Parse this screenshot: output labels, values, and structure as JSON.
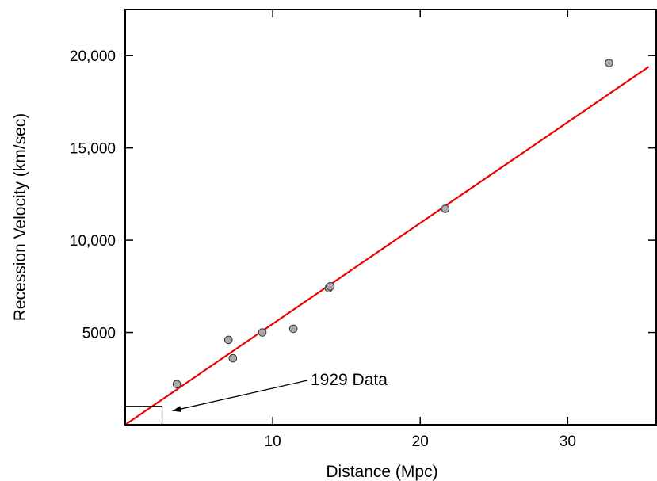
{
  "chart_data": {
    "type": "scatter",
    "title": "",
    "xlabel": "Distance (Mpc)",
    "ylabel": "Recession Velocity (km/sec)",
    "xlim": [
      0,
      36
    ],
    "ylim": [
      0,
      22500
    ],
    "x_ticks": [
      10,
      20,
      30
    ],
    "x_tick_labels": [
      "10",
      "20",
      "30"
    ],
    "y_ticks": [
      5000,
      10000,
      15000,
      20000
    ],
    "y_tick_labels": [
      "5000",
      "10,000",
      "15,000",
      "20,000"
    ],
    "grid": false,
    "series": [
      {
        "type": "scatter",
        "color": "#aaaaaa",
        "points": [
          {
            "x": 3.5,
            "y": 2200
          },
          {
            "x": 7.0,
            "y": 4600
          },
          {
            "x": 7.3,
            "y": 3600
          },
          {
            "x": 9.3,
            "y": 5000
          },
          {
            "x": 11.4,
            "y": 5200
          },
          {
            "x": 13.8,
            "y": 7400
          },
          {
            "x": 13.9,
            "y": 7500
          },
          {
            "x": 21.7,
            "y": 11700
          },
          {
            "x": 32.8,
            "y": 19600
          }
        ]
      },
      {
        "type": "line",
        "color": "#ee0000",
        "x": [
          0,
          35.5
        ],
        "y": [
          0,
          19400
        ]
      }
    ],
    "annotations": [
      {
        "text": "1929 Data",
        "box": {
          "x0": 0,
          "x1": 2.5,
          "y0": 0,
          "y1": 1000
        },
        "arrow_to": {
          "x": 3.2,
          "y": 750
        }
      }
    ]
  }
}
